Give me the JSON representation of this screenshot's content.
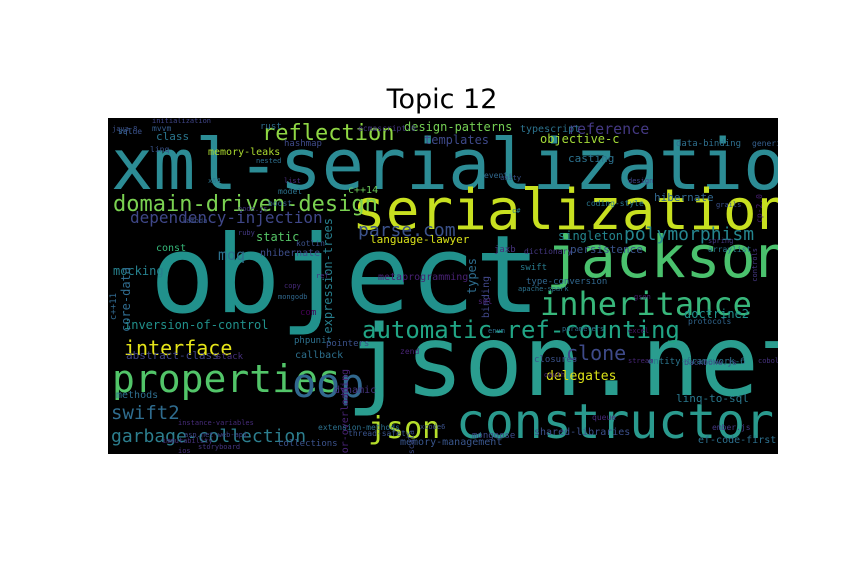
{
  "title": "Topic 12",
  "colormap": [
    "#440154",
    "#472d7b",
    "#3b528b",
    "#2c728e",
    "#21918c",
    "#28ae80",
    "#5ec962",
    "#addc30",
    "#fde725"
  ],
  "words": [
    {
      "text": "object",
      "color": "#21918c"
    },
    {
      "text": "json.net",
      "color": "#2a9d8f"
    },
    {
      "text": "xml-serialization",
      "color": "#2c8c95"
    },
    {
      "text": "serialization",
      "color": "#c8e020"
    },
    {
      "text": "jackson",
      "color": "#4ac16d"
    },
    {
      "text": "constructor",
      "color": "#2a9a8e"
    },
    {
      "text": "properties",
      "color": "#52c569"
    },
    {
      "text": "inheritance",
      "color": "#38b77b"
    },
    {
      "text": "automatic-ref-counting",
      "color": "#21a585"
    },
    {
      "text": "oop",
      "color": "#31688e"
    },
    {
      "text": "json",
      "color": "#b5de2b"
    },
    {
      "text": "domain-driven-design",
      "color": "#7ad151"
    },
    {
      "text": "reflection",
      "color": "#8fd744"
    },
    {
      "text": "garbage-collection",
      "color": "#2c7e8e"
    },
    {
      "text": "polymorphism",
      "color": "#25858e"
    },
    {
      "text": "interface",
      "color": "#e5e419"
    },
    {
      "text": "clone",
      "color": "#3e4a89"
    },
    {
      "text": "swift2",
      "color": "#2f6c8e"
    },
    {
      "text": "parse.com",
      "color": "#3b528b"
    },
    {
      "text": "reference",
      "color": "#443983"
    },
    {
      "text": "dependency-injection",
      "color": "#3f4788"
    },
    {
      "text": "moq",
      "color": "#2d718e"
    },
    {
      "text": "inversion-of-control",
      "color": "#21918c"
    },
    {
      "text": "design-patterns",
      "color": "#75d054"
    },
    {
      "text": "objective-c",
      "color": "#a2da37"
    },
    {
      "text": "generics",
      "color": "#355f8d"
    },
    {
      "text": "data-binding",
      "color": "#2e6f8e"
    },
    {
      "text": "expression-trees",
      "color": "#277f8e"
    },
    {
      "text": "language-lawyer",
      "color": "#d8e219"
    },
    {
      "text": "singleton",
      "color": "#24868e"
    },
    {
      "text": "persistence",
      "color": "#3a548c"
    },
    {
      "text": "doctrine2",
      "color": "#20928c"
    },
    {
      "text": "delegates",
      "color": "#dde318"
    },
    {
      "text": "linq-to-sql",
      "color": "#2a788e"
    },
    {
      "text": "mocking",
      "color": "#26818e"
    },
    {
      "text": "static",
      "color": "#56c667"
    },
    {
      "text": "nhibernate",
      "color": "#3d4e8a"
    },
    {
      "text": "abstract-class",
      "color": "#404387"
    },
    {
      "text": "methods",
      "color": "#2e6e8e"
    },
    {
      "text": "memory-management",
      "color": "#39568c"
    },
    {
      "text": "mongoose",
      "color": "#3e4c8a"
    },
    {
      "text": "core-data",
      "color": "#2f6b8e"
    },
    {
      "text": "stack",
      "color": "#472f7d"
    },
    {
      "text": "entity-framework-6",
      "color": "#2b758e"
    },
    {
      "text": "closures",
      "color": "#3b528b"
    },
    {
      "text": "class",
      "color": "#2a768e"
    },
    {
      "text": "memory-leaks",
      "color": "#addc30"
    },
    {
      "text": "const",
      "color": "#35b779"
    },
    {
      "text": "com",
      "color": "#440154"
    },
    {
      "text": "types",
      "color": "#2e6d8e"
    },
    {
      "text": "binding",
      "color": "#404688"
    },
    {
      "text": "hibernate",
      "color": "#31678e"
    },
    {
      "text": "typescript",
      "color": "#2c738e"
    },
    {
      "text": "templates",
      "color": "#3e4989"
    },
    {
      "text": "casting",
      "color": "#2c728e"
    },
    {
      "text": "c++14",
      "color": "#6ccd5a"
    },
    {
      "text": "shared-libraries",
      "color": "#3c508b"
    },
    {
      "text": "ef-code-first",
      "color": "#2d708e"
    },
    {
      "text": "metaprogramming",
      "color": "#482173"
    },
    {
      "text": "dynamic",
      "color": "#463480"
    },
    {
      "text": "pointers",
      "color": "#3b528b"
    },
    {
      "text": "protocols",
      "color": "#31668e"
    },
    {
      "text": "callback",
      "color": "#2d708e"
    },
    {
      "text": "swift",
      "color": "#287c8e"
    },
    {
      "text": "c++11",
      "color": "#31688e"
    },
    {
      "text": "type-conversion",
      "color": "#31678e"
    },
    {
      "text": "jaxb",
      "color": "#46327e"
    },
    {
      "text": "mvvm",
      "color": "#365d8d"
    },
    {
      "text": "linq",
      "color": "#3a548c"
    },
    {
      "text": "rust",
      "color": "#2e6e8e"
    },
    {
      "text": "lambda",
      "color": "#3c4f8a"
    },
    {
      "text": "phpunit",
      "color": "#2d708e"
    },
    {
      "text": "operator-overloading",
      "color": "#482374"
    },
    {
      "text": "collections",
      "color": "#3b528b"
    },
    {
      "text": "backbone.js",
      "color": "#3e4a89"
    },
    {
      "text": "ember.js",
      "color": "#443a83"
    },
    {
      "text": "cp-2.0",
      "color": "#481f71"
    },
    {
      "text": "initialization",
      "color": "#404588"
    },
    {
      "text": "dictionary",
      "color": "#453882"
    },
    {
      "text": "copy",
      "color": "#472a7a"
    },
    {
      "text": "ecmascript-6",
      "color": "#453781"
    },
    {
      "text": "hashmap",
      "color": "#3e4a89"
    },
    {
      "text": "arraylist",
      "color": "#2a788e"
    },
    {
      "text": "mongodb",
      "color": "#31688e"
    },
    {
      "text": "kotlin",
      "color": "#3b528b"
    },
    {
      "text": "apache-spark",
      "color": "#2c738e"
    },
    {
      "text": "thread-safety",
      "color": "#3a548c"
    },
    {
      "text": "java-8",
      "color": "#3b518b"
    },
    {
      "text": "storyboard",
      "color": "#453781"
    },
    {
      "text": "x64",
      "color": "#2b758e"
    },
    {
      "text": "ios",
      "color": "#46307e"
    },
    {
      "text": "nested",
      "color": "#2e6f8e"
    },
    {
      "text": "oauth",
      "color": "#482475"
    },
    {
      "text": "extension-methods",
      "color": "#2c718e"
    },
    {
      "text": "instance-variables",
      "color": "#472c7a"
    },
    {
      "text": "asp.net-web-api",
      "color": "#404588"
    },
    {
      "text": "parameters",
      "color": "#2d708e"
    },
    {
      "text": "immutability",
      "color": "#46327e"
    },
    {
      "text": "sml",
      "color": "#482071"
    },
    {
      "text": "controls",
      "color": "#453882"
    },
    {
      "text": "events",
      "color": "#31688e"
    },
    {
      "text": "ruby",
      "color": "#443983"
    },
    {
      "text": "scala",
      "color": "#3e4c8a"
    },
    {
      "text": "coding-style",
      "color": "#2a788e"
    },
    {
      "text": "queue",
      "color": "#472c7a"
    },
    {
      "text": "gson",
      "color": "#481f70"
    },
    {
      "text": "xcode6",
      "color": "#3b528b"
    },
    {
      "text": "stream",
      "color": "#482677"
    },
    {
      "text": "design",
      "color": "#404588"
    },
    {
      "text": "model",
      "color": "#2c738e"
    },
    {
      "text": "c#",
      "color": "#287d8e"
    },
    {
      "text": "spring",
      "color": "#443983"
    },
    {
      "text": "list",
      "color": "#472e7c"
    },
    {
      "text": "boost",
      "color": "#355f8d"
    },
    {
      "text": "unity",
      "color": "#3b528b"
    },
    {
      "text": "enum",
      "color": "#2e6e8e"
    },
    {
      "text": "node.js",
      "color": "#443983"
    },
    {
      "text": "excel",
      "color": "#481769"
    },
    {
      "text": "zend",
      "color": "#482475"
    },
    {
      "text": "grails",
      "color": "#3b528b"
    },
    {
      "text": "cobol",
      "color": "#46327e"
    },
    {
      "text": "ref",
      "color": "#472f7d"
    },
    {
      "text": "sql",
      "color": "#2c738e"
    },
    {
      "text": "value",
      "color": "#3b528b"
    }
  ]
}
